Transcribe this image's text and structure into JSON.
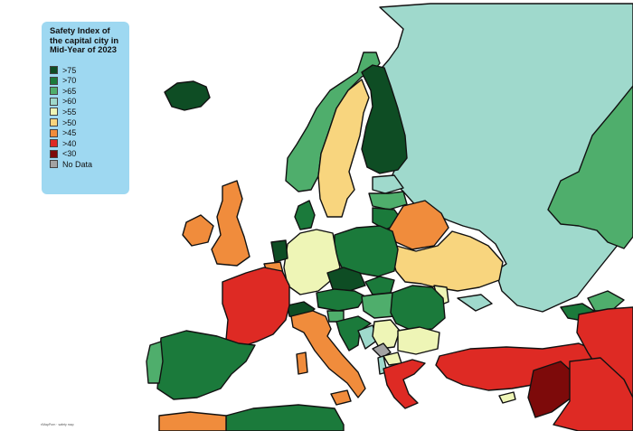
{
  "legend": {
    "title": "Safety Index of the capital city in Mid-Year of 2023",
    "items": [
      {
        "label": ">75",
        "color": "#0e4d24"
      },
      {
        "label": ">70",
        "color": "#1b7a3b"
      },
      {
        "label": ">65",
        "color": "#4fae6c"
      },
      {
        "label": ">60",
        "color": "#9fd9cc"
      },
      {
        "label": ">55",
        "color": "#eef5b6"
      },
      {
        "label": ">50",
        "color": "#f8d57e"
      },
      {
        "label": ">45",
        "color": "#f08c3c"
      },
      {
        "label": ">40",
        "color": "#de2a24"
      },
      {
        "label": "<30",
        "color": "#7d0a0a"
      },
      {
        "label": "No Data",
        "color": "#a3a3a3"
      }
    ]
  },
  "credit": "r/MapPorn · safety map"
}
